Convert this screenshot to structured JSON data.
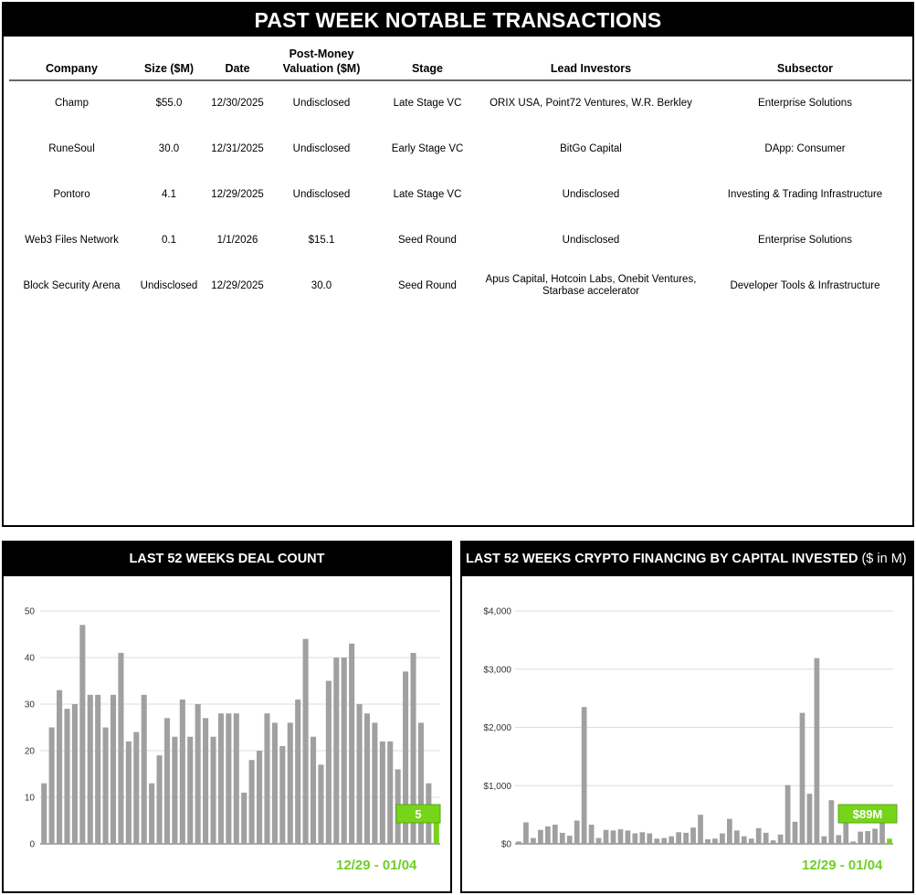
{
  "header": {
    "title": "PAST WEEK NOTABLE TRANSACTIONS"
  },
  "table": {
    "columns": [
      "Company",
      "Size ($M)",
      "Date",
      "Post-Money Valuation ($M)",
      "Stage",
      "Lead Investors",
      "Subsector"
    ],
    "rows": [
      [
        "Champ",
        "$55.0",
        "12/30/2025",
        "Undisclosed",
        "Late Stage VC",
        "ORIX USA, Point72 Ventures, W.R. Berkley",
        "Enterprise Solutions"
      ],
      [
        "RuneSoul",
        "30.0",
        "12/31/2025",
        "Undisclosed",
        "Early Stage VC",
        "BitGo Capital",
        "DApp: Consumer"
      ],
      [
        "Pontoro",
        "4.1",
        "12/29/2025",
        "Undisclosed",
        "Late Stage VC",
        "Undisclosed",
        "Investing & Trading Infrastructure"
      ],
      [
        "Web3 Files Network",
        "0.1",
        "1/1/2026",
        "$15.1",
        "Seed Round",
        "Undisclosed",
        "Enterprise Solutions"
      ],
      [
        "Block Security Arena",
        "Undisclosed",
        "12/29/2025",
        "30.0",
        "Seed Round",
        "Apus Capital, Hotcoin Labs, Onebit Ventures, Starbase accelerator",
        "Developer Tools & Infrastructure"
      ]
    ]
  },
  "colors": {
    "bar": "#a0a0a0",
    "highlight": "#76d41a",
    "grid": "#dcdcdc",
    "header_bg": "#000000"
  },
  "chart_data": [
    {
      "type": "bar",
      "title": "LAST 52 WEEKS DEAL COUNT",
      "ylim": [
        0,
        50
      ],
      "yticks": [
        0,
        10,
        20,
        30,
        40,
        50
      ],
      "ytick_labels": [
        "0",
        "10",
        "20",
        "30",
        "40",
        "50"
      ],
      "values": [
        13,
        25,
        33,
        29,
        30,
        47,
        32,
        32,
        25,
        32,
        41,
        22,
        24,
        32,
        13,
        19,
        27,
        23,
        31,
        23,
        30,
        27,
        23,
        28,
        28,
        28,
        11,
        18,
        20,
        28,
        26,
        21,
        26,
        31,
        44,
        23,
        17,
        35,
        40,
        40,
        43,
        30,
        28,
        26,
        22,
        22,
        16,
        37,
        41,
        26,
        13,
        5
      ],
      "highlight_label": "5",
      "date_range": "12/29 - 01/04",
      "grid": true
    },
    {
      "type": "bar",
      "title": "LAST 52 WEEKS CRYPTO FINANCING BY CAPITAL INVESTED",
      "title_unit": "($ in M)",
      "ylim": [
        0,
        4000
      ],
      "yticks": [
        0,
        1000,
        2000,
        3000,
        4000
      ],
      "ytick_labels": [
        "$0",
        "$1,000",
        "$2,000",
        "$3,000",
        "$4,000"
      ],
      "values": [
        40,
        370,
        100,
        240,
        300,
        330,
        190,
        140,
        400,
        2350,
        330,
        100,
        240,
        230,
        250,
        230,
        180,
        200,
        180,
        90,
        100,
        130,
        200,
        190,
        280,
        500,
        80,
        90,
        180,
        430,
        230,
        130,
        90,
        270,
        190,
        60,
        160,
        1010,
        380,
        2250,
        860,
        3190,
        130,
        750,
        150,
        400,
        40,
        210,
        220,
        260,
        400,
        89
      ],
      "highlight_label": "$89M",
      "date_range": "12/29 - 01/04",
      "grid": true
    }
  ]
}
